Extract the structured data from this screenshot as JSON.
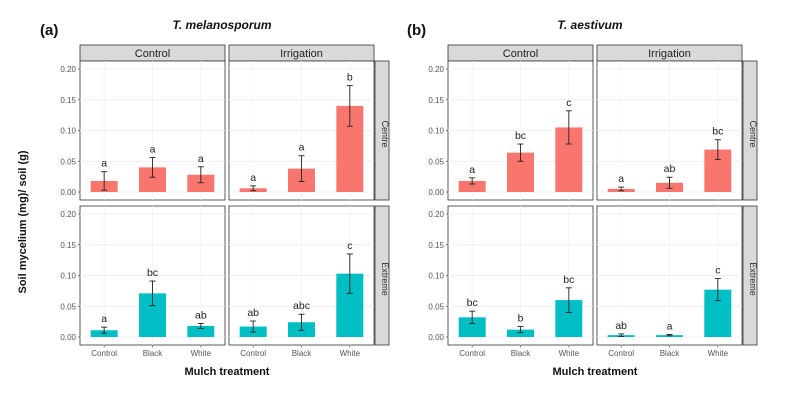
{
  "figure": {
    "ylabel": "Soil mycelium (mg)/ soil (g)"
  },
  "chart_data": [
    {
      "type": "bar",
      "label": "(a)",
      "title": "T. melanosporum",
      "xlabel": "Mulch treatment",
      "ylabel": "Soil mycelium (mg)/ soil (g)",
      "categories": [
        "Control",
        "Black",
        "White"
      ],
      "ylim": [
        0,
        0.2
      ],
      "yticks": [
        "0.00",
        "0.05",
        "0.10",
        "0.15",
        "0.20"
      ],
      "columns": [
        "Control",
        "Irrigation"
      ],
      "rows": [
        "Centre",
        "Extreme"
      ],
      "row_colors": [
        "#f8766d",
        "#00bfc4"
      ],
      "cells": [
        [
          {
            "values": [
              0.018,
              0.04,
              0.028
            ],
            "errors": [
              0.015,
              0.016,
              0.013
            ],
            "letters": [
              "a",
              "a",
              "a"
            ]
          },
          {
            "values": [
              0.006,
              0.038,
              0.14
            ],
            "errors": [
              0.004,
              0.021,
              0.033
            ],
            "letters": [
              "a",
              "a",
              "b"
            ]
          }
        ],
        [
          {
            "values": [
              0.011,
              0.071,
              0.018
            ],
            "errors": [
              0.005,
              0.02,
              0.004
            ],
            "letters": [
              "a",
              "bc",
              "ab"
            ]
          },
          {
            "values": [
              0.017,
              0.024,
              0.103
            ],
            "errors": [
              0.009,
              0.013,
              0.032
            ],
            "letters": [
              "ab",
              "abc",
              "c"
            ]
          }
        ]
      ]
    },
    {
      "type": "bar",
      "label": "(b)",
      "title": "T. aestivum",
      "xlabel": "Mulch treatment",
      "ylabel": "Soil mycelium (mg)/ soil (g)",
      "categories": [
        "Control",
        "Black",
        "White"
      ],
      "ylim": [
        0,
        0.2
      ],
      "yticks": [
        "0.00",
        "0.05",
        "0.10",
        "0.15",
        "0.20"
      ],
      "columns": [
        "Control",
        "Irrigation"
      ],
      "rows": [
        "Centre",
        "Extreme"
      ],
      "row_colors": [
        "#f8766d",
        "#00bfc4"
      ],
      "cells": [
        [
          {
            "values": [
              0.018,
              0.064,
              0.105
            ],
            "errors": [
              0.005,
              0.014,
              0.027
            ],
            "letters": [
              "a",
              "bc",
              "c"
            ]
          },
          {
            "values": [
              0.005,
              0.015,
              0.069
            ],
            "errors": [
              0.003,
              0.009,
              0.016
            ],
            "letters": [
              "a",
              "ab",
              "bc"
            ]
          }
        ],
        [
          {
            "values": [
              0.032,
              0.012,
              0.06
            ],
            "errors": [
              0.01,
              0.005,
              0.02
            ],
            "letters": [
              "bc",
              "b",
              "bc"
            ]
          },
          {
            "values": [
              0.003,
              0.003,
              0.077
            ],
            "errors": [
              0.002,
              0.001,
              0.018
            ],
            "letters": [
              "ab",
              "a",
              "c"
            ]
          }
        ]
      ]
    }
  ]
}
